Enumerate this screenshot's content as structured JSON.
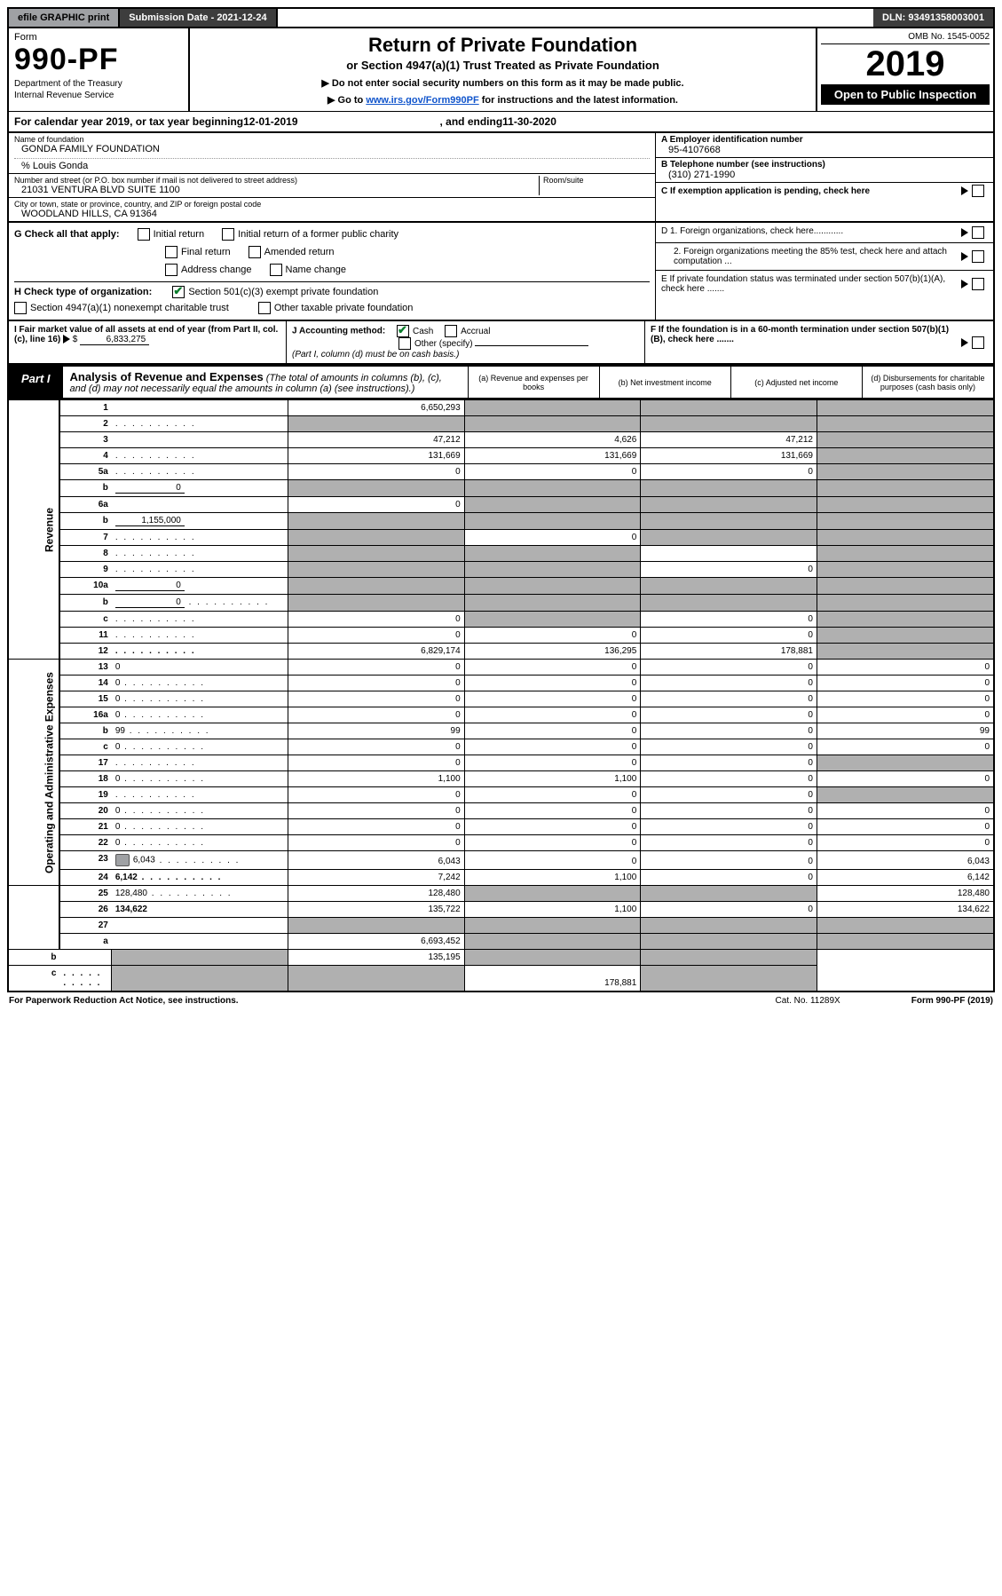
{
  "topbar": {
    "efile": "efile GRAPHIC print",
    "submission": "Submission Date - 2021-12-24",
    "dln": "DLN: 93491358003001"
  },
  "header": {
    "form_label": "Form",
    "form_no": "990-PF",
    "dept": "Department of the Treasury",
    "irs": "Internal Revenue Service",
    "title": "Return of Private Foundation",
    "subtitle": "or Section 4947(a)(1) Trust Treated as Private Foundation",
    "note1": "▶ Do not enter social security numbers on this form as it may be made public.",
    "note2_pre": "▶ Go to ",
    "note2_link": "www.irs.gov/Form990PF",
    "note2_post": " for instructions and the latest information.",
    "omb": "OMB No. 1545-0052",
    "year": "2019",
    "open": "Open to Public Inspection"
  },
  "cal": {
    "pre": "For calendar year 2019, or tax year beginning ",
    "begin": "12-01-2019",
    "mid": " , and ending ",
    "end": "11-30-2020"
  },
  "info": {
    "name_lbl": "Name of foundation",
    "name": "GONDA FAMILY FOUNDATION",
    "care": "% Louis Gonda",
    "addr_lbl": "Number and street (or P.O. box number if mail is not delivered to street address)",
    "addr": "21031 VENTURA BLVD SUITE 1100",
    "room_lbl": "Room/suite",
    "city_lbl": "City or town, state or province, country, and ZIP or foreign postal code",
    "city": "WOODLAND HILLS, CA  91364",
    "a_lbl": "A Employer identification number",
    "a_val": "95-4107668",
    "b_lbl": "B Telephone number (see instructions)",
    "b_val": "(310) 271-1990",
    "c_lbl": "C If exemption application is pending, check here"
  },
  "g": {
    "lbl": "G Check all that apply:",
    "o1": "Initial return",
    "o2": "Initial return of a former public charity",
    "o3": "Final return",
    "o4": "Amended return",
    "o5": "Address change",
    "o6": "Name change"
  },
  "h": {
    "lbl": "H Check type of organization:",
    "o1": "Section 501(c)(3) exempt private foundation",
    "o2": "Section 4947(a)(1) nonexempt charitable trust",
    "o3": "Other taxable private foundation"
  },
  "d": {
    "d1": "D 1. Foreign organizations, check here............",
    "d2": "2. Foreign organizations meeting the 85% test, check here and attach computation ...",
    "e": "E  If private foundation status was terminated under section 507(b)(1)(A), check here .......",
    "f": "F  If the foundation is in a 60-month termination under section 507(b)(1)(B), check here ......."
  },
  "i": {
    "lbl": "I Fair market value of all assets at end of year (from Part II, col. (c), line 16)",
    "val": "6,833,275",
    "j_lbl": "J Accounting method:",
    "j_cash": "Cash",
    "j_acc": "Accrual",
    "j_other": "Other (specify)",
    "j_note": "(Part I, column (d) must be on cash basis.)"
  },
  "part1": {
    "tag": "Part I",
    "title": "Analysis of Revenue and Expenses",
    "title_note": " (The total of amounts in columns (b), (c), and (d) may not necessarily equal the amounts in column (a) (see instructions).)",
    "col_a": "(a) Revenue and expenses per books",
    "col_b": "(b) Net investment income",
    "col_c": "(c) Adjusted net income",
    "col_d": "(d) Disbursements for charitable purposes (cash basis only)"
  },
  "vtab_rev": "Revenue",
  "vtab_exp": "Operating and Administrative Expenses",
  "rows": {
    "r1": {
      "n": "1",
      "d": "",
      "a": "6,650,293",
      "b": "",
      "c": "",
      "sb": true,
      "sc": true,
      "sd": true
    },
    "r2": {
      "n": "2",
      "d": "",
      "a": "",
      "b": "",
      "c": "",
      "sa": true,
      "sb": true,
      "sc": true,
      "sd": true,
      "dots": true
    },
    "r3": {
      "n": "3",
      "d": "",
      "a": "47,212",
      "b": "4,626",
      "c": "47,212",
      "sd": true
    },
    "r4": {
      "n": "4",
      "d": "",
      "a": "131,669",
      "b": "131,669",
      "c": "131,669",
      "sd": true,
      "dots": true
    },
    "r5a": {
      "n": "5a",
      "d": "",
      "a": "0",
      "b": "0",
      "c": "0",
      "sd": true,
      "dots": true
    },
    "r5b": {
      "n": "b",
      "d": "",
      "fill": "0",
      "a": "",
      "b": "",
      "c": "",
      "sa": true,
      "sb": true,
      "sc": true,
      "sd": true
    },
    "r6a": {
      "n": "6a",
      "d": "",
      "a": "0",
      "b": "",
      "c": "",
      "sb": true,
      "sc": true,
      "sd": true
    },
    "r6b": {
      "n": "b",
      "d": "",
      "fill": "1,155,000",
      "a": "",
      "b": "",
      "c": "",
      "sa": true,
      "sb": true,
      "sc": true,
      "sd": true
    },
    "r7": {
      "n": "7",
      "d": "",
      "a": "",
      "b": "0",
      "c": "",
      "sa": true,
      "sc": true,
      "sd": true,
      "dots": true
    },
    "r8": {
      "n": "8",
      "d": "",
      "a": "",
      "b": "",
      "c": "",
      "sa": true,
      "sb": true,
      "sd": true,
      "dots": true
    },
    "r9": {
      "n": "9",
      "d": "",
      "a": "",
      "b": "",
      "c": "0",
      "sa": true,
      "sb": true,
      "sd": true,
      "dots": true
    },
    "r10a": {
      "n": "10a",
      "d": "",
      "fill": "0",
      "a": "",
      "b": "",
      "c": "",
      "sa": true,
      "sb": true,
      "sc": true,
      "sd": true
    },
    "r10b": {
      "n": "b",
      "d": "",
      "fill": "0",
      "a": "",
      "b": "",
      "c": "",
      "sa": true,
      "sb": true,
      "sc": true,
      "sd": true,
      "dots": true
    },
    "r10c": {
      "n": "c",
      "d": "",
      "a": "0",
      "b": "",
      "c": "0",
      "sb": true,
      "sd": true,
      "dots": true
    },
    "r11": {
      "n": "11",
      "d": "",
      "a": "0",
      "b": "0",
      "c": "0",
      "sd": true,
      "dots": true
    },
    "r12": {
      "n": "12",
      "d": "",
      "a": "6,829,174",
      "b": "136,295",
      "c": "178,881",
      "sd": true,
      "bold": true,
      "dots": true
    },
    "r13": {
      "n": "13",
      "d": "0",
      "a": "0",
      "b": "0",
      "c": "0"
    },
    "r14": {
      "n": "14",
      "d": "0",
      "a": "0",
      "b": "0",
      "c": "0",
      "dots": true
    },
    "r15": {
      "n": "15",
      "d": "0",
      "a": "0",
      "b": "0",
      "c": "0",
      "dots": true
    },
    "r16a": {
      "n": "16a",
      "d": "0",
      "a": "0",
      "b": "0",
      "c": "0",
      "dots": true
    },
    "r16b": {
      "n": "b",
      "d": "99",
      "a": "99",
      "b": "0",
      "c": "0",
      "dots": true
    },
    "r16c": {
      "n": "c",
      "d": "0",
      "a": "0",
      "b": "0",
      "c": "0",
      "dots": true
    },
    "r17": {
      "n": "17",
      "d": "",
      "a": "0",
      "b": "0",
      "c": "0",
      "sd": true,
      "dots": true
    },
    "r18": {
      "n": "18",
      "d": "0",
      "a": "1,100",
      "b": "1,100",
      "c": "0",
      "dots": true
    },
    "r19": {
      "n": "19",
      "d": "",
      "a": "0",
      "b": "0",
      "c": "0",
      "sd": true,
      "dots": true
    },
    "r20": {
      "n": "20",
      "d": "0",
      "a": "0",
      "b": "0",
      "c": "0",
      "dots": true
    },
    "r21": {
      "n": "21",
      "d": "0",
      "a": "0",
      "b": "0",
      "c": "0",
      "dots": true
    },
    "r22": {
      "n": "22",
      "d": "0",
      "a": "0",
      "b": "0",
      "c": "0",
      "dots": true
    },
    "r23": {
      "n": "23",
      "d": "6,043",
      "a": "6,043",
      "b": "0",
      "c": "0",
      "icon": true,
      "dots": true
    },
    "r24": {
      "n": "24",
      "d": "6,142",
      "a": "7,242",
      "b": "1,100",
      "c": "0",
      "bold": true,
      "dots": true
    },
    "r25": {
      "n": "25",
      "d": "128,480",
      "a": "128,480",
      "b": "",
      "c": "",
      "sb": true,
      "sc": true,
      "dots": true
    },
    "r26": {
      "n": "26",
      "d": "134,622",
      "a": "135,722",
      "b": "1,100",
      "c": "0",
      "bold": true
    },
    "r27": {
      "n": "27",
      "d": "",
      "a": "",
      "b": "",
      "c": "",
      "sa": true,
      "sb": true,
      "sc": true,
      "sd": true
    },
    "r27a": {
      "n": "a",
      "d": "",
      "a": "6,693,452",
      "b": "",
      "c": "",
      "sb": true,
      "sc": true,
      "sd": true,
      "bold": true
    },
    "r27b": {
      "n": "b",
      "d": "",
      "a": "",
      "b": "135,195",
      "c": "",
      "sa": true,
      "sc": true,
      "sd": true,
      "bold": true
    },
    "r27c": {
      "n": "c",
      "d": "",
      "a": "",
      "b": "",
      "c": "178,881",
      "sa": true,
      "sb": true,
      "sd": true,
      "bold": true,
      "dots": true
    }
  },
  "footer": {
    "left": "For Paperwork Reduction Act Notice, see instructions.",
    "cat": "Cat. No. 11289X",
    "right": "Form 990-PF (2019)"
  }
}
